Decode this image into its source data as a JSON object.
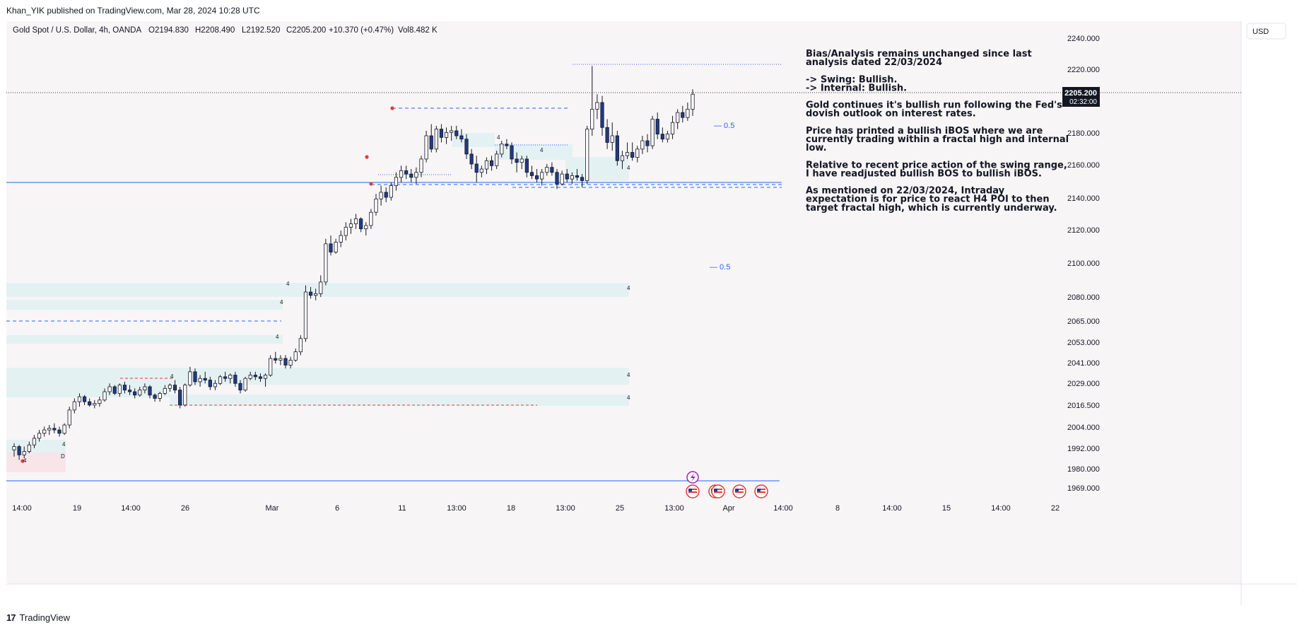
{
  "header": {
    "published_line": "Khan_YIK published on TradingView.com, Mar 28, 2024 10:28 UTC",
    "symbol_line": "Gold Spot / U.S. Dollar, 4h, OANDA",
    "ohlc": {
      "o": "O2194.830",
      "h": "H2208.490",
      "l": "L2192.520",
      "c": "C2205.200",
      "chg": "+10.370 (+0.47%)",
      "vol": "Vol8.482 K"
    }
  },
  "currency_button": "USD",
  "price_axis": {
    "ticks": [
      "2240.000",
      "2220.000",
      "2180.000",
      "2160.000",
      "2140.000",
      "2120.000",
      "2100.000",
      "2080.000",
      "2065.000",
      "2053.000",
      "2041.000",
      "2029.000",
      "2016.500",
      "2004.000",
      "1992.000",
      "1980.000",
      "1969.000"
    ],
    "current_price": "2205.200",
    "countdown": "02:32:00"
  },
  "time_axis": {
    "ticks": [
      "14:00",
      "19",
      "14:00",
      "26",
      "Mar",
      "6",
      "11",
      "13:00",
      "18",
      "13:00",
      "25",
      "13:00",
      "Apr",
      "14:00",
      "8",
      "14:00",
      "15",
      "14:00",
      "22"
    ]
  },
  "annotations": {
    "fib_labels": [
      "— 0.5",
      "— 0.5"
    ],
    "zone_label": "4",
    "d_label": "D"
  },
  "notes": {
    "lines": [
      "Bias/Analysis remains unchanged since last",
      "analysis dated 22/03/2024",
      "",
      "-> Swing:  Bullish.",
      "-> Internal:  Bullish.",
      "",
      "Gold continues it's bullish run following the Fed's",
      "dovish outlook on interest rates.",
      "",
      "Price has printed a bullish iBOS where we are",
      "currently trading within a fractal high and internal",
      "low.",
      "",
      "Relative to recent price action of the swing range,",
      "I have readjusted bullish BOS to bullish iBOS.",
      "",
      "As mentioned on 22/03/2024, Intraday",
      "expectation is for price to react H4 POI to then",
      "target fractal high, which is currently underway."
    ]
  },
  "footer": {
    "brand": "TradingView",
    "mark": "17"
  },
  "colors": {
    "bull_body": "#ffffff",
    "bear_body": "#1e3a8a",
    "wick": "#131722",
    "zone_fill": "#e3f0f2",
    "bos_blue": "#2962ff",
    "bos_red": "#e53935",
    "price_label_bg": "#131722",
    "plot_bg": "#f8f5f7"
  },
  "chart_data": {
    "type": "candlestick",
    "title": "Gold Spot / U.S. Dollar, 4h, OANDA",
    "xlabel": "",
    "ylabel": "",
    "ylim": [
      1962,
      2245
    ],
    "x_start": "2024-02-16 14:00",
    "candles": [
      [
        1991,
        1995,
        1987,
        1993
      ],
      [
        1993,
        1994,
        1985,
        1988
      ],
      [
        1988,
        1993,
        1986,
        1990
      ],
      [
        1990,
        1996,
        1989,
        1994
      ],
      [
        1994,
        2000,
        1992,
        1998
      ],
      [
        1998,
        2003,
        1996,
        2001
      ],
      [
        2001,
        2005,
        1999,
        2003
      ],
      [
        2003,
        2006,
        2000,
        2004
      ],
      [
        2004,
        2007,
        2001,
        2003
      ],
      [
        2003,
        2005,
        1999,
        2001
      ],
      [
        2001,
        2007,
        2000,
        2006
      ],
      [
        2006,
        2017,
        2004,
        2015
      ],
      [
        2015,
        2022,
        2013,
        2020
      ],
      [
        2020,
        2025,
        2017,
        2023
      ],
      [
        2023,
        2024,
        2018,
        2020
      ],
      [
        2020,
        2022,
        2017,
        2018
      ],
      [
        2018,
        2021,
        2016,
        2019
      ],
      [
        2019,
        2023,
        2017,
        2021
      ],
      [
        2021,
        2028,
        2020,
        2026
      ],
      [
        2026,
        2031,
        2024,
        2029
      ],
      [
        2029,
        2030,
        2024,
        2025
      ],
      [
        2025,
        2031,
        2023,
        2030
      ],
      [
        2030,
        2032,
        2025,
        2027
      ],
      [
        2027,
        2030,
        2024,
        2026
      ],
      [
        2026,
        2028,
        2022,
        2024
      ],
      [
        2024,
        2029,
        2023,
        2027
      ],
      [
        2027,
        2031,
        2025,
        2029
      ],
      [
        2029,
        2030,
        2022,
        2024
      ],
      [
        2024,
        2025,
        2020,
        2022
      ],
      [
        2022,
        2026,
        2020,
        2025
      ],
      [
        2025,
        2030,
        2024,
        2028
      ],
      [
        2028,
        2031,
        2026,
        2030
      ],
      [
        2030,
        2033,
        2025,
        2027
      ],
      [
        2027,
        2029,
        2016,
        2018
      ],
      [
        2018,
        2031,
        2017,
        2030
      ],
      [
        2030,
        2041,
        2029,
        2038
      ],
      [
        2038,
        2040,
        2030,
        2032
      ],
      [
        2032,
        2036,
        2029,
        2034
      ],
      [
        2034,
        2038,
        2031,
        2033
      ],
      [
        2033,
        2035,
        2027,
        2029
      ],
      [
        2029,
        2033,
        2027,
        2031
      ],
      [
        2031,
        2036,
        2030,
        2035
      ],
      [
        2035,
        2038,
        2032,
        2034
      ],
      [
        2034,
        2037,
        2031,
        2036
      ],
      [
        2036,
        2038,
        2029,
        2031
      ],
      [
        2031,
        2033,
        2025,
        2027
      ],
      [
        2027,
        2035,
        2026,
        2034
      ],
      [
        2034,
        2038,
        2033,
        2036
      ],
      [
        2036,
        2038,
        2033,
        2035
      ],
      [
        2035,
        2037,
        2032,
        2034
      ],
      [
        2034,
        2037,
        2029,
        2036
      ],
      [
        2036,
        2048,
        2035,
        2046
      ],
      [
        2046,
        2050,
        2043,
        2045
      ],
      [
        2045,
        2048,
        2042,
        2046
      ],
      [
        2046,
        2048,
        2040,
        2042
      ],
      [
        2042,
        2047,
        2040,
        2045
      ],
      [
        2045,
        2052,
        2044,
        2050
      ],
      [
        2050,
        2060,
        2048,
        2058
      ],
      [
        2058,
        2090,
        2056,
        2086
      ],
      [
        2086,
        2089,
        2082,
        2084
      ],
      [
        2084,
        2088,
        2081,
        2085
      ],
      [
        2085,
        2096,
        2083,
        2092
      ],
      [
        2092,
        2118,
        2090,
        2115
      ],
      [
        2115,
        2120,
        2108,
        2110
      ],
      [
        2110,
        2118,
        2109,
        2116
      ],
      [
        2116,
        2123,
        2113,
        2120
      ],
      [
        2120,
        2128,
        2117,
        2125
      ],
      [
        2125,
        2130,
        2121,
        2127
      ],
      [
        2127,
        2133,
        2124,
        2130
      ],
      [
        2130,
        2131,
        2122,
        2124
      ],
      [
        2124,
        2128,
        2120,
        2126
      ],
      [
        2126,
        2136,
        2124,
        2134
      ],
      [
        2134,
        2145,
        2132,
        2142
      ],
      [
        2142,
        2150,
        2138,
        2146
      ],
      [
        2146,
        2149,
        2140,
        2143
      ],
      [
        2143,
        2152,
        2141,
        2150
      ],
      [
        2150,
        2158,
        2147,
        2155
      ],
      [
        2155,
        2162,
        2152,
        2159
      ],
      [
        2159,
        2162,
        2154,
        2157
      ],
      [
        2157,
        2160,
        2152,
        2155
      ],
      [
        2155,
        2161,
        2151,
        2158
      ],
      [
        2158,
        2168,
        2155,
        2166
      ],
      [
        2166,
        2183,
        2164,
        2180
      ],
      [
        2180,
        2187,
        2170,
        2172
      ],
      [
        2172,
        2186,
        2170,
        2184
      ],
      [
        2184,
        2187,
        2176,
        2179
      ],
      [
        2179,
        2185,
        2175,
        2182
      ],
      [
        2182,
        2186,
        2177,
        2183
      ],
      [
        2183,
        2186,
        2178,
        2180
      ],
      [
        2180,
        2184,
        2176,
        2178
      ],
      [
        2178,
        2181,
        2166,
        2169
      ],
      [
        2169,
        2172,
        2160,
        2163
      ],
      [
        2163,
        2168,
        2152,
        2158
      ],
      [
        2158,
        2162,
        2155,
        2160
      ],
      [
        2160,
        2167,
        2157,
        2165
      ],
      [
        2165,
        2168,
        2159,
        2162
      ],
      [
        2162,
        2171,
        2160,
        2169
      ],
      [
        2169,
        2177,
        2167,
        2175
      ],
      [
        2175,
        2178,
        2172,
        2174
      ],
      [
        2174,
        2176,
        2163,
        2166
      ],
      [
        2166,
        2170,
        2158,
        2164
      ],
      [
        2164,
        2168,
        2160,
        2166
      ],
      [
        2166,
        2168,
        2155,
        2158
      ],
      [
        2158,
        2162,
        2154,
        2156
      ],
      [
        2156,
        2160,
        2152,
        2154
      ],
      [
        2154,
        2160,
        2150,
        2158
      ],
      [
        2158,
        2163,
        2156,
        2161
      ],
      [
        2161,
        2164,
        2156,
        2158
      ],
      [
        2158,
        2160,
        2148,
        2151
      ],
      [
        2151,
        2159,
        2150,
        2157
      ],
      [
        2157,
        2160,
        2152,
        2154
      ],
      [
        2154,
        2158,
        2151,
        2156
      ],
      [
        2156,
        2160,
        2153,
        2155
      ],
      [
        2155,
        2157,
        2149,
        2153
      ],
      [
        2153,
        2186,
        2151,
        2184
      ],
      [
        2184,
        2222,
        2180,
        2196
      ],
      [
        2196,
        2205,
        2190,
        2200
      ],
      [
        2200,
        2204,
        2180,
        2185
      ],
      [
        2185,
        2190,
        2172,
        2176
      ],
      [
        2176,
        2188,
        2171,
        2180
      ],
      [
        2180,
        2183,
        2162,
        2165
      ],
      [
        2165,
        2171,
        2160,
        2168
      ],
      [
        2168,
        2176,
        2166,
        2170
      ],
      [
        2170,
        2176,
        2165,
        2167
      ],
      [
        2167,
        2174,
        2164,
        2172
      ],
      [
        2172,
        2180,
        2169,
        2177
      ],
      [
        2177,
        2181,
        2170,
        2174
      ],
      [
        2174,
        2192,
        2172,
        2190
      ],
      [
        2190,
        2194,
        2178,
        2181
      ],
      [
        2181,
        2185,
        2176,
        2178
      ],
      [
        2178,
        2183,
        2176,
        2181
      ],
      [
        2181,
        2192,
        2178,
        2188
      ],
      [
        2188,
        2196,
        2184,
        2194
      ],
      [
        2194,
        2198,
        2188,
        2191
      ],
      [
        2191,
        2200,
        2189,
        2196
      ],
      [
        2196,
        2208,
        2192,
        2205
      ]
    ]
  }
}
